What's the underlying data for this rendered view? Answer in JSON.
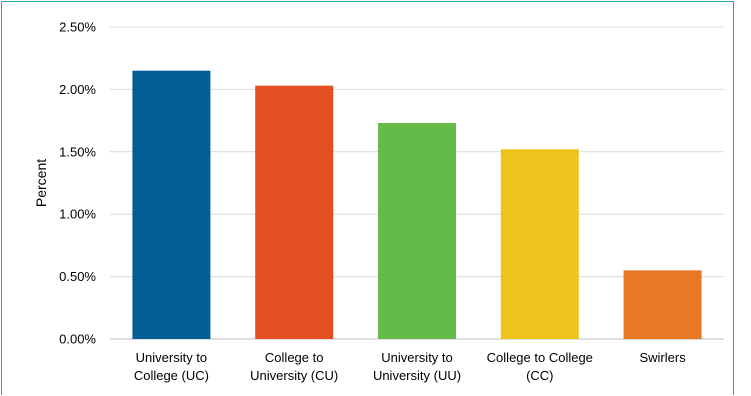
{
  "chart_data": {
    "type": "bar",
    "title": "",
    "xlabel": "",
    "ylabel": "Percent",
    "ylim": [
      0,
      0.025
    ],
    "y_ticks": [
      "0.00%",
      "0.50%",
      "1.00%",
      "1.50%",
      "2.00%",
      "2.50%"
    ],
    "grid": true,
    "legend": "none",
    "categories": [
      [
        "University to",
        "College (UC)"
      ],
      [
        "College to",
        "University (CU)"
      ],
      [
        "University to",
        "University (UU)"
      ],
      [
        "College to College",
        "(CC)"
      ],
      [
        "Swirlers"
      ]
    ],
    "values": [
      0.0215,
      0.0203,
      0.0173,
      0.0152,
      0.0055
    ],
    "colors": [
      "#035e95",
      "#e44f22",
      "#64bb47",
      "#eec31b",
      "#e87824"
    ]
  }
}
